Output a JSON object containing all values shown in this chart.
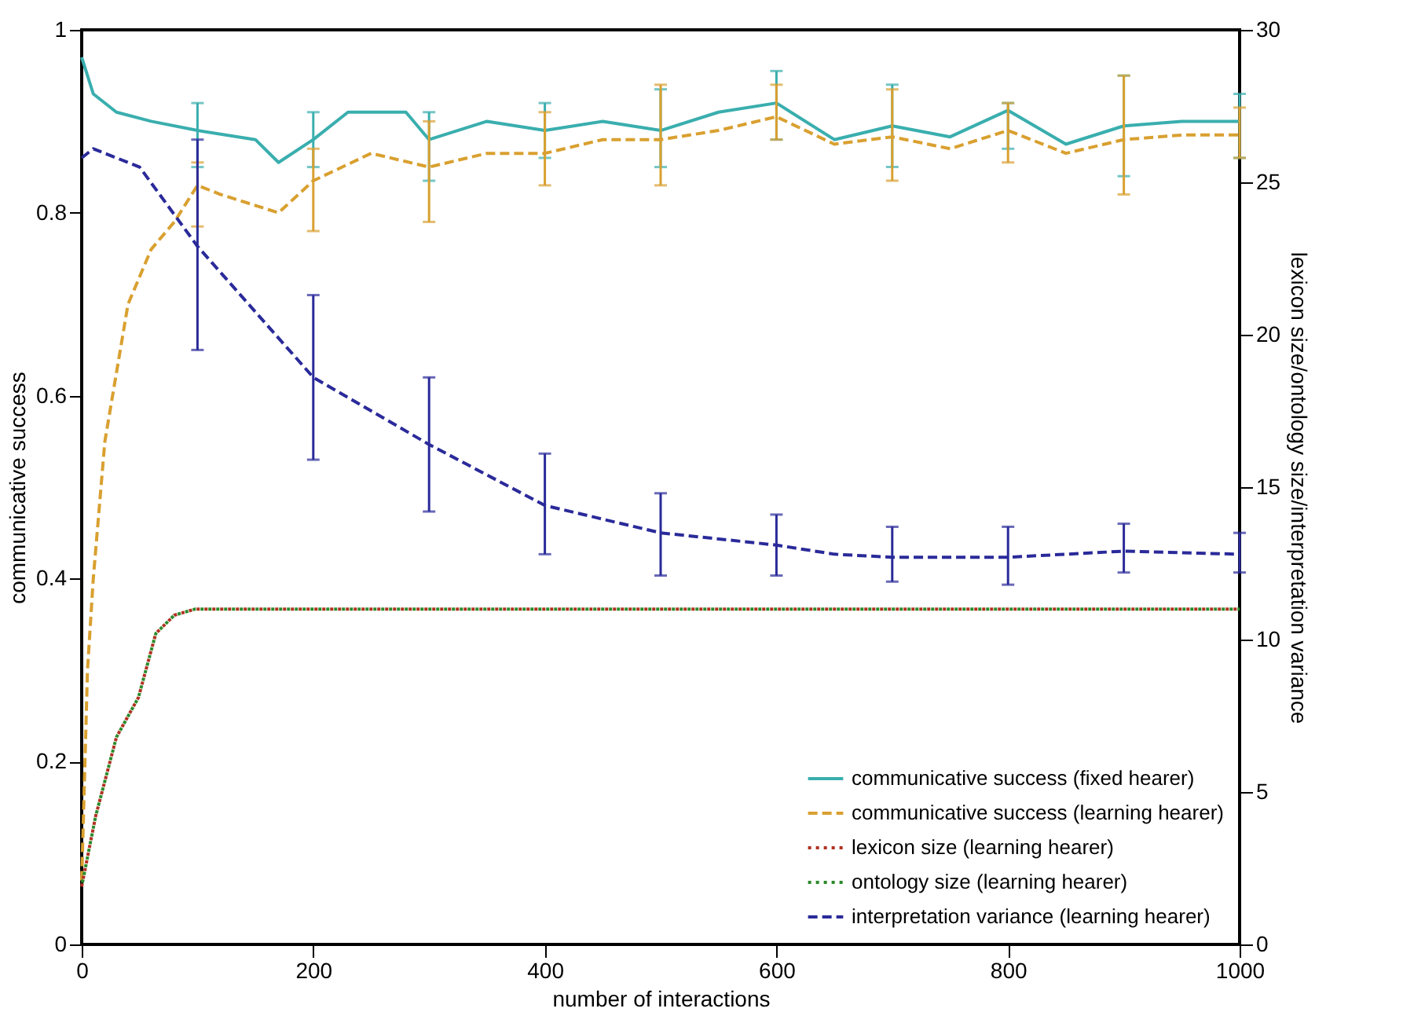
{
  "chart_data": {
    "type": "line",
    "xlabel": "number of interactions",
    "ylabel": "communicative success",
    "y2label": "lexicon size/ontology size/interpretation variance",
    "xlim": [
      0,
      1000
    ],
    "xticks": [
      0,
      200,
      400,
      600,
      800,
      1000
    ],
    "ylim": [
      0,
      1
    ],
    "yticks": [
      0,
      0.2,
      0.4,
      0.6,
      0.8,
      1
    ],
    "y2lim": [
      0,
      30
    ],
    "y2ticks": [
      0,
      5,
      10,
      15,
      20,
      25,
      30
    ],
    "legend": "bottom right",
    "series": [
      {
        "name": "communicative success (fixed hearer)",
        "color": "#3aaeae",
        "line_style": "solid",
        "x": [
          0,
          10,
          30,
          60,
          100,
          150,
          170,
          200,
          230,
          280,
          300,
          350,
          400,
          450,
          500,
          550,
          600,
          650,
          700,
          750,
          800,
          850,
          900,
          950,
          1000
        ],
        "values": [
          0.97,
          0.93,
          0.91,
          0.9,
          0.89,
          0.88,
          0.855,
          0.88,
          0.91,
          0.91,
          0.88,
          0.9,
          0.89,
          0.9,
          0.89,
          0.91,
          0.92,
          0.88,
          0.895,
          0.883,
          0.912,
          0.875,
          0.895,
          0.9,
          0.9
        ],
        "errors": [
          null,
          null,
          null,
          null,
          [
            0.85,
            0.92
          ],
          null,
          null,
          [
            0.85,
            0.91
          ],
          null,
          null,
          [
            0.835,
            0.91
          ],
          null,
          [
            0.86,
            0.92
          ],
          null,
          [
            0.85,
            0.935
          ],
          null,
          [
            0.88,
            0.955
          ],
          null,
          [
            0.85,
            0.94
          ],
          null,
          [
            0.87,
            0.92
          ],
          null,
          [
            0.84,
            0.95
          ],
          null,
          [
            0.86,
            0.93
          ]
        ]
      },
      {
        "name": "communicative success (learning hearer)",
        "color": "#d9a030",
        "line_style": "dashed",
        "x": [
          0,
          5,
          10,
          20,
          40,
          60,
          80,
          100,
          120,
          170,
          200,
          250,
          300,
          350,
          400,
          450,
          500,
          550,
          600,
          650,
          700,
          750,
          800,
          850,
          900,
          950,
          1000
        ],
        "values": [
          0.07,
          0.3,
          0.4,
          0.55,
          0.7,
          0.76,
          0.79,
          0.83,
          0.82,
          0.8,
          0.835,
          0.865,
          0.85,
          0.865,
          0.865,
          0.88,
          0.88,
          0.89,
          0.905,
          0.875,
          0.883,
          0.87,
          0.89,
          0.865,
          0.88,
          0.885,
          0.885
        ],
        "errors": [
          null,
          null,
          null,
          null,
          null,
          null,
          null,
          [
            0.785,
            0.855
          ],
          null,
          null,
          [
            0.78,
            0.87
          ],
          null,
          [
            0.79,
            0.9
          ],
          null,
          [
            0.83,
            0.91
          ],
          null,
          [
            0.83,
            0.94
          ],
          null,
          [
            0.88,
            0.94
          ],
          null,
          [
            0.835,
            0.935
          ],
          null,
          [
            0.855,
            0.92
          ],
          null,
          [
            0.82,
            0.95
          ],
          null,
          [
            0.86,
            0.915
          ]
        ]
      },
      {
        "name": "lexicon size (learning hearer)",
        "color": "#b03020",
        "line_style": "dotted",
        "axis": "y2",
        "x": [
          0,
          12,
          30,
          49,
          64,
          80,
          98,
          1000
        ],
        "values": [
          1.9,
          4.2,
          6.8,
          8.1,
          10.2,
          10.8,
          11,
          11
        ]
      },
      {
        "name": "ontology size (learning hearer)",
        "color": "#2a8a2a",
        "line_style": "dotted",
        "axis": "y2",
        "x": [
          0,
          12,
          30,
          49,
          64,
          80,
          98,
          1000
        ],
        "values": [
          1.9,
          4.2,
          6.8,
          8.1,
          10.2,
          10.8,
          11,
          11
        ]
      },
      {
        "name": "interpretation variance (learning hearer)",
        "color": "#2a2a9a",
        "line_style": "dashed",
        "axis": "y2",
        "x": [
          0,
          10,
          50,
          100,
          200,
          300,
          400,
          500,
          600,
          650,
          700,
          800,
          850,
          900,
          1000
        ],
        "values": [
          25.8,
          26.1,
          25.5,
          22.9,
          18.6,
          16.4,
          14.4,
          13.5,
          13.1,
          12.8,
          12.7,
          12.7,
          12.8,
          12.9,
          12.8
        ],
        "errors": [
          null,
          null,
          null,
          [
            19.5,
            26.4
          ],
          [
            15.9,
            21.3
          ],
          [
            14.2,
            18.6
          ],
          [
            12.8,
            16.1
          ],
          [
            12.1,
            14.8
          ],
          [
            12.1,
            14.1
          ],
          null,
          [
            11.9,
            13.7
          ],
          [
            11.8,
            13.7
          ],
          null,
          [
            12.2,
            13.8
          ],
          [
            12.2,
            13.5
          ]
        ]
      }
    ]
  }
}
